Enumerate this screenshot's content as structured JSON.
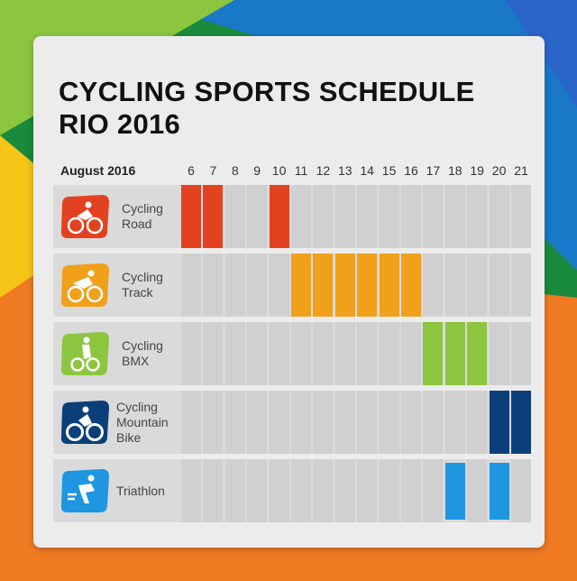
{
  "title_lines": [
    "CYCLING SPORTS SCHEDULE",
    "RIO 2016"
  ],
  "chart_data": {
    "type": "table",
    "month_label": "August 2016",
    "days": [
      "6",
      "7",
      "8",
      "9",
      "10",
      "11",
      "12",
      "13",
      "14",
      "15",
      "16",
      "17",
      "18",
      "19",
      "20",
      "21"
    ],
    "rows": [
      {
        "label_lines": [
          "Cycling",
          "Road"
        ],
        "icon": "cyclist-road-icon",
        "color": "#e2421f",
        "events": [
          "6",
          "7",
          "10"
        ],
        "bar_fill": 1.0
      },
      {
        "label_lines": [
          "Cycling",
          "Track"
        ],
        "icon": "cyclist-track-icon",
        "color": "#f0a01a",
        "events": [
          "11",
          "12",
          "13",
          "14",
          "15",
          "16"
        ],
        "bar_fill": 1.0
      },
      {
        "label_lines": [
          "Cycling",
          "BMX"
        ],
        "icon": "bmx-rider-icon",
        "color": "#8cc63f",
        "events": [
          "17",
          "18",
          "19"
        ],
        "bar_fill": 1.0
      },
      {
        "label_lines": [
          "Cycling",
          "Mountain",
          "Bike"
        ],
        "icon": "mountain-biker-icon",
        "color": "#0b3f7a",
        "events": [
          "20",
          "21"
        ],
        "bar_fill": 1.0
      },
      {
        "label_lines": [
          "Triathlon"
        ],
        "icon": "triathlete-icon",
        "color": "#1e96e0",
        "events": [
          "18",
          "20"
        ],
        "bar_fill": 0.9
      }
    ]
  }
}
